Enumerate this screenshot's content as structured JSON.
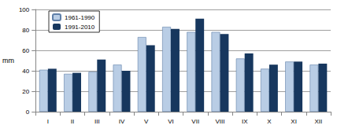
{
  "chart_data": {
    "type": "bar",
    "y_label": "mm",
    "categories": [
      "I",
      "II",
      "III",
      "IV",
      "V",
      "VI",
      "VII",
      "VIII",
      "IX",
      "X",
      "XI",
      "XII"
    ],
    "series": [
      {
        "name": "1961-1990",
        "color": "#b9cde5",
        "values": [
          41,
          37,
          39,
          46,
          73,
          83,
          78,
          78,
          52,
          42,
          49,
          46
        ]
      },
      {
        "name": "1991-2010",
        "color": "#17375e",
        "values": [
          42,
          38,
          51,
          40,
          65,
          81,
          91,
          76,
          57,
          46,
          49,
          47
        ]
      }
    ],
    "ylim": [
      0,
      100
    ],
    "yticks": [
      0,
      20,
      40,
      60,
      80,
      100
    ],
    "grid": true,
    "legend": "upper left"
  }
}
